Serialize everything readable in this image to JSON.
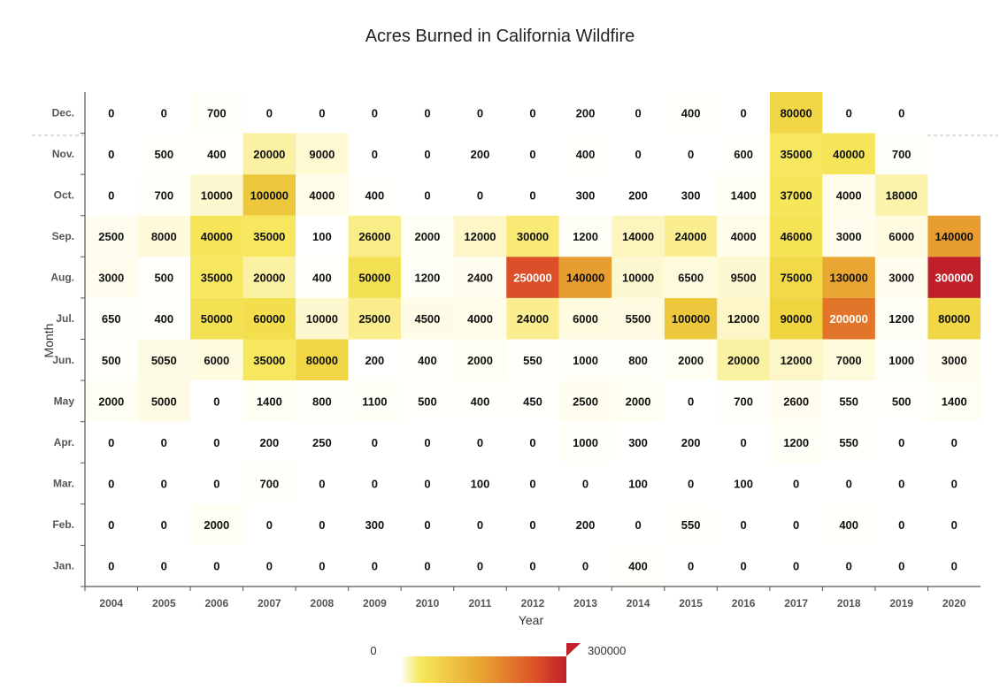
{
  "title": "Acres Burned in California Wildfire",
  "chart_data": {
    "type": "heatmap",
    "title": "Acres Burned in California Wildfire",
    "xlabel": "Year",
    "ylabel": "Month",
    "x": [
      "2004",
      "2005",
      "2006",
      "2007",
      "2008",
      "2009",
      "2010",
      "2011",
      "2012",
      "2013",
      "2014",
      "2015",
      "2016",
      "2017",
      "2018",
      "2019",
      "2020"
    ],
    "y": [
      "Dec.",
      "Nov.",
      "Oct.",
      "Sep.",
      "Aug.",
      "Jul.",
      "Jun.",
      "May",
      "Apr.",
      "Mar.",
      "Feb.",
      "Jan."
    ],
    "values": [
      [
        0,
        0,
        700,
        0,
        0,
        0,
        0,
        0,
        0,
        200,
        0,
        400,
        0,
        80000,
        0,
        0,
        null
      ],
      [
        0,
        500,
        400,
        20000,
        9000,
        0,
        0,
        200,
        0,
        400,
        0,
        0,
        600,
        35000,
        40000,
        700,
        null
      ],
      [
        0,
        700,
        10000,
        100000,
        4000,
        400,
        0,
        0,
        0,
        300,
        200,
        300,
        1400,
        37000,
        4000,
        18000,
        null
      ],
      [
        2500,
        8000,
        40000,
        35000,
        100,
        26000,
        2000,
        12000,
        30000,
        1200,
        14000,
        24000,
        4000,
        46000,
        3000,
        6000,
        140000
      ],
      [
        3000,
        500,
        35000,
        20000,
        400,
        50000,
        1200,
        2400,
        250000,
        140000,
        10000,
        6500,
        9500,
        75000,
        130000,
        3000,
        300000
      ],
      [
        650,
        400,
        50000,
        60000,
        10000,
        25000,
        4500,
        4000,
        24000,
        6000,
        5500,
        100000,
        12000,
        90000,
        200000,
        1200,
        80000
      ],
      [
        500,
        5050,
        6000,
        35000,
        80000,
        200,
        400,
        2000,
        550,
        1000,
        800,
        2000,
        20000,
        12000,
        7000,
        1000,
        3000
      ],
      [
        2000,
        5000,
        0,
        1400,
        800,
        1100,
        500,
        400,
        450,
        2500,
        2000,
        0,
        700,
        2600,
        550,
        500,
        1400
      ],
      [
        0,
        0,
        0,
        200,
        250,
        0,
        0,
        0,
        0,
        1000,
        300,
        200,
        0,
        1200,
        550,
        0,
        0
      ],
      [
        0,
        0,
        0,
        700,
        0,
        0,
        0,
        100,
        0,
        0,
        100,
        0,
        100,
        0,
        0,
        0,
        0
      ],
      [
        0,
        0,
        2000,
        0,
        0,
        300,
        0,
        0,
        0,
        200,
        0,
        550,
        0,
        0,
        400,
        0,
        0
      ],
      [
        0,
        0,
        0,
        0,
        0,
        0,
        0,
        0,
        0,
        0,
        400,
        0,
        0,
        0,
        0,
        0,
        0
      ]
    ],
    "color_range": [
      0,
      300000
    ],
    "colorscale": [
      "#ffffff",
      "#f7e85a",
      "#e8a030",
      "#e05a28",
      "#c0202a"
    ],
    "legend": {
      "min_label": "0",
      "max_label": "300000",
      "placement": "bottom-center"
    }
  }
}
